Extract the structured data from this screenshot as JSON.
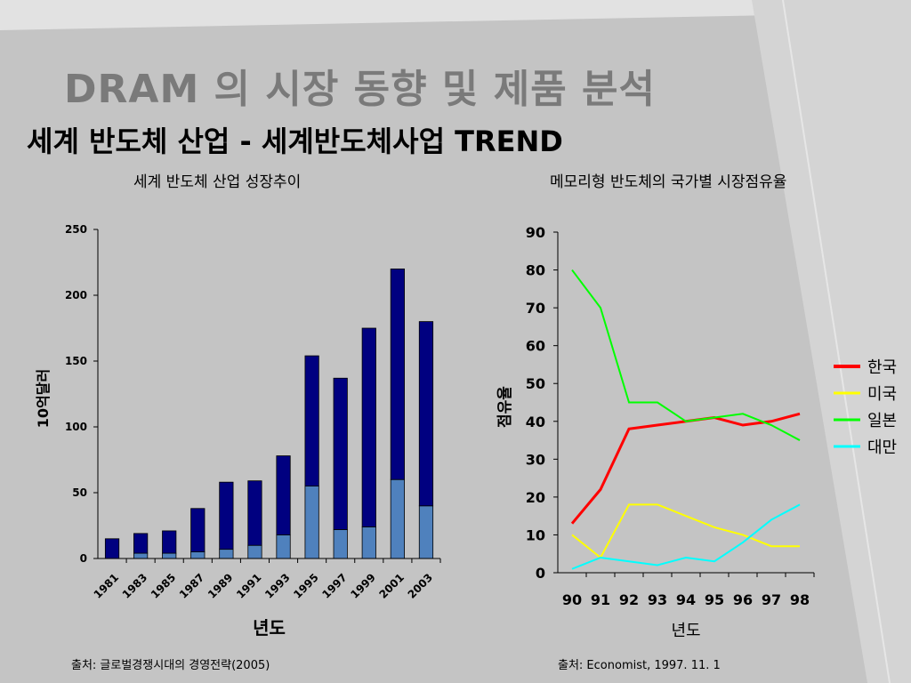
{
  "slide": {
    "title": "DRAM 의 시장 동향 및 제품 분석",
    "subtitle": "세계 반도체 산업 - 세계반도체사업 TREND"
  },
  "chart_data": [
    {
      "type": "bar",
      "title": "세계 반도체 산업 성장추이",
      "xlabel": "년도",
      "ylabel": "10억달러",
      "ylim": [
        0,
        250
      ],
      "yticks": [
        0,
        50,
        100,
        150,
        200,
        250
      ],
      "categories": [
        "1981",
        "1983",
        "1985",
        "1987",
        "1989",
        "1991",
        "1993",
        "1995",
        "1997",
        "1999",
        "2001",
        "2003"
      ],
      "stacked": true,
      "series": [
        {
          "values": [
            0,
            4,
            4,
            5,
            7,
            10,
            18,
            55,
            22,
            24,
            60,
            40
          ],
          "color": "#4f81bd"
        },
        {
          "values": [
            15,
            15,
            17,
            33,
            51,
            49,
            60,
            99,
            115,
            151,
            160,
            140
          ],
          "color": "#000080"
        }
      ],
      "grid": false,
      "source": "출처: 글로벌경쟁시대의 경영전략(2005)"
    },
    {
      "type": "line",
      "title": "메모리형 반도체의 국가별 시장점유율",
      "xlabel": "년도",
      "ylabel": "점유율",
      "ylim": [
        0,
        90
      ],
      "yticks": [
        0,
        10,
        20,
        30,
        40,
        50,
        60,
        70,
        80,
        90
      ],
      "x": [
        "90",
        "91",
        "92",
        "93",
        "94",
        "95",
        "96",
        "97",
        "98"
      ],
      "series": [
        {
          "name": "한국",
          "values": [
            13,
            22,
            38,
            39,
            40,
            41,
            39,
            40,
            42
          ],
          "color": "#ff0000"
        },
        {
          "name": "미국",
          "values": [
            10,
            4,
            18,
            18,
            15,
            12,
            10,
            7,
            7
          ],
          "color": "#ffff00"
        },
        {
          "name": "일본",
          "values": [
            80,
            70,
            45,
            45,
            40,
            41,
            42,
            39,
            35
          ],
          "color": "#00ff00"
        },
        {
          "name": "대만",
          "values": [
            1,
            4,
            3,
            2,
            4,
            3,
            8,
            14,
            18
          ],
          "color": "#00ffff"
        }
      ],
      "legend": "right",
      "grid": false,
      "source": "출처: Economist, 1997. 11. 1"
    }
  ]
}
